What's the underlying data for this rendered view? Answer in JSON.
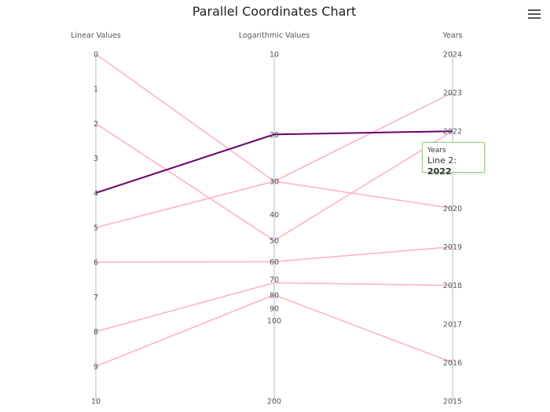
{
  "chart_data": {
    "type": "parallel-coordinates",
    "title": "Parallel Coordinates Chart",
    "axes": [
      {
        "name": "Linear Values",
        "scale": "linear",
        "range": [
          0,
          10
        ],
        "ticks": [
          "0",
          "1",
          "2",
          "3",
          "4",
          "5",
          "6",
          "7",
          "8",
          "9",
          "10"
        ]
      },
      {
        "name": "Logarithmic Values",
        "scale": "log",
        "range": [
          10,
          200
        ],
        "ticks": [
          "10",
          "20",
          "30",
          "40",
          "50",
          "60",
          "70",
          "80",
          "90",
          "100",
          "200"
        ]
      },
      {
        "name": "Years",
        "scale": "linear",
        "range": [
          2015,
          2024
        ],
        "ticks": [
          "2024",
          "2023",
          "2022",
          "2021",
          "2020",
          "2019",
          "2018",
          "2017",
          "2016",
          "2015"
        ]
      }
    ],
    "series": [
      {
        "values": [
          0,
          30,
          2023
        ]
      },
      {
        "values": [
          2,
          50,
          2022
        ]
      },
      {
        "values": [
          4,
          20,
          2022
        ],
        "highlighted": true
      },
      {
        "values": [
          5,
          30,
          2020
        ]
      },
      {
        "values": [
          6,
          60,
          2019
        ]
      },
      {
        "values": [
          8,
          72,
          2018
        ]
      },
      {
        "values": [
          9,
          80,
          2016
        ]
      }
    ],
    "colors": {
      "line": "#ffb3c6",
      "highlight": "#6b006b",
      "axis": "#a9bfdc",
      "tooltip_border": "#90d07a"
    }
  },
  "tooltip": {
    "header": "Years",
    "series_label": "Line 2:",
    "value": "2022"
  },
  "menu": {
    "icon": "hamburger-menu-icon"
  }
}
